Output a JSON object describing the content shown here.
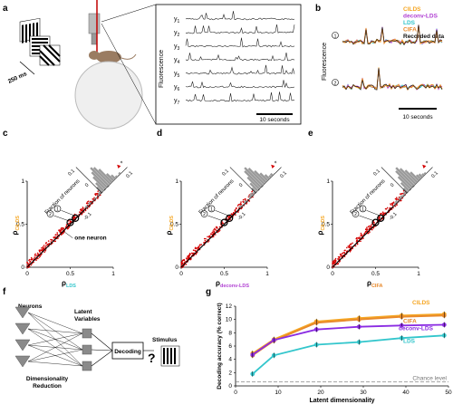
{
  "panels": {
    "a": "a",
    "b": "b",
    "c": "c",
    "d": "d",
    "e": "e",
    "f": "f",
    "g": "g"
  },
  "panel_a": {
    "stim_duration": "250 ms",
    "fluor_label": "Fluorescence",
    "traces": [
      {
        "label": "y",
        "sub": "1"
      },
      {
        "label": "y",
        "sub": "2"
      },
      {
        "label": "y",
        "sub": "3"
      },
      {
        "label": "y",
        "sub": "4"
      },
      {
        "label": "y",
        "sub": "5"
      },
      {
        "label": "y",
        "sub": "6"
      },
      {
        "label": "y",
        "sub": "7"
      }
    ],
    "scalebar": "10 seconds"
  },
  "panel_b": {
    "ylabel": "Fluorescence",
    "legend": [
      {
        "name": "CILDS",
        "color": "#f5a623"
      },
      {
        "name": "deconv-LDS",
        "color": "#b03fd2"
      },
      {
        "name": "LDS",
        "color": "#33c6cc"
      },
      {
        "name": "CIFA",
        "color": "#e8892b"
      },
      {
        "name": "Recorded data",
        "color": "#111111"
      }
    ],
    "markers": [
      "1",
      "2"
    ],
    "scalebar": "10 seconds"
  },
  "scatter_panels": [
    {
      "ylabel_sub": "CILDS",
      "ylabel_color": "#f5a623",
      "xlabel_sub": "LDS",
      "xlabel_color": "#33c6cc",
      "note": "one neuron"
    },
    {
      "ylabel_sub": "CILDS",
      "ylabel_color": "#f5a623",
      "xlabel_sub": "deconv-LDS",
      "xlabel_color": "#b03fd2",
      "note": ""
    },
    {
      "ylabel_sub": "CILDS",
      "ylabel_color": "#f5a623",
      "xlabel_sub": "CIFA",
      "xlabel_color": "#e8892b",
      "note": ""
    }
  ],
  "scatter_common": {
    "rho": "ρ",
    "ticks": [
      "0",
      "0.5",
      "1"
    ],
    "hist_ylabel": "Fraction of neurons",
    "hist_ticks": [
      "0.1",
      "0",
      "-0.1",
      "0.1"
    ],
    "markers": [
      "1",
      "2"
    ],
    "star": "*"
  },
  "panel_f": {
    "neurons": "Neurons",
    "latent": "Latent\nVariables",
    "decoding": "Decoding",
    "stimulus": "Stimulus",
    "dimred": "Dimensionality\nReduction",
    "question": "?"
  },
  "chart_data": {
    "type": "line",
    "title": "",
    "xlabel": "Latent dimensionality",
    "ylabel": "Decoding accuracy (% correct)",
    "xlim": [
      0,
      50
    ],
    "ylim": [
      0,
      12
    ],
    "xticks": [
      0,
      10,
      20,
      30,
      40,
      50
    ],
    "yticks": [
      0,
      2,
      4,
      6,
      8,
      10,
      12
    ],
    "x": [
      4,
      9,
      19,
      29,
      39,
      49
    ],
    "series": [
      {
        "name": "CILDS",
        "color": "#f5a623",
        "values": [
          4.9,
          7.0,
          9.7,
          10.2,
          10.6,
          10.8
        ]
      },
      {
        "name": "CIFA",
        "color": "#e8892b",
        "values": [
          4.6,
          6.8,
          9.5,
          10.0,
          10.4,
          10.6
        ]
      },
      {
        "name": "deconv-LDS",
        "color": "#8a2be2",
        "values": [
          4.7,
          6.9,
          8.5,
          8.9,
          9.1,
          9.2
        ]
      },
      {
        "name": "LDS",
        "color": "#33c6cc",
        "values": [
          1.8,
          4.6,
          6.2,
          6.6,
          7.2,
          7.6
        ]
      }
    ],
    "chance_level": 0.6,
    "chance_label": "Chance level"
  }
}
